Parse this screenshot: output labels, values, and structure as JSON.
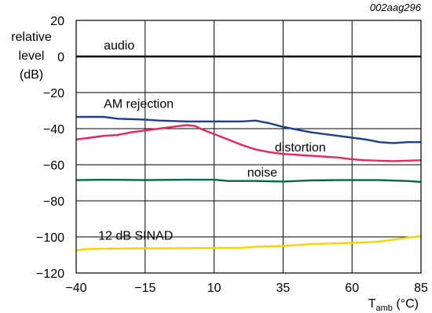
{
  "chart_data": {
    "type": "line",
    "reference": "002aag296",
    "ylabel_lines": [
      "relative",
      "level",
      "(dB)"
    ],
    "xlabel_main": "T",
    "xlabel_sub": "amb",
    "xlabel_unit": " (°C)",
    "xlim": [
      -40,
      85
    ],
    "ylim": [
      -120,
      20
    ],
    "xticks": [
      -40,
      -15,
      10,
      35,
      60,
      85
    ],
    "yticks": [
      20,
      0,
      -20,
      -40,
      -60,
      -80,
      -100,
      -120
    ],
    "xtick_labels": [
      "−40",
      "−15",
      "10",
      "35",
      "60",
      "85"
    ],
    "ytick_labels": [
      "20",
      "0",
      "−20",
      "−40",
      "−60",
      "−80",
      "−100",
      "−120"
    ],
    "grid": true,
    "series": [
      {
        "name": "audio",
        "color": "#000000",
        "label_at": [
          -30,
          4
        ],
        "points": [
          [
            -40,
            0
          ],
          [
            85,
            0
          ]
        ]
      },
      {
        "name": "AM rejection",
        "color": "#1c3f94",
        "label_at": [
          -30,
          -28.5
        ],
        "points": [
          [
            -40,
            -33.5
          ],
          [
            -30,
            -33.5
          ],
          [
            -25,
            -34.5
          ],
          [
            -15,
            -35
          ],
          [
            -10,
            -35.5
          ],
          [
            0,
            -36
          ],
          [
            10,
            -36
          ],
          [
            20,
            -36
          ],
          [
            25,
            -35.5
          ],
          [
            30,
            -37
          ],
          [
            35,
            -39
          ],
          [
            40,
            -40.5
          ],
          [
            45,
            -42
          ],
          [
            50,
            -43
          ],
          [
            55,
            -44
          ],
          [
            60,
            -45
          ],
          [
            65,
            -46
          ],
          [
            70,
            -47.5
          ],
          [
            75,
            -48
          ],
          [
            80,
            -47.5
          ],
          [
            85,
            -47.5
          ]
        ]
      },
      {
        "name": "distortion",
        "color": "#e8265e",
        "label_at": [
          32,
          -52.5
        ],
        "points": [
          [
            -40,
            -46
          ],
          [
            -35,
            -45
          ],
          [
            -30,
            -44
          ],
          [
            -25,
            -43.5
          ],
          [
            -20,
            -42
          ],
          [
            -15,
            -41
          ],
          [
            -10,
            -40
          ],
          [
            -5,
            -39
          ],
          [
            0,
            -38
          ],
          [
            3,
            -38.5
          ],
          [
            5,
            -40
          ],
          [
            10,
            -43
          ],
          [
            15,
            -46
          ],
          [
            20,
            -49
          ],
          [
            25,
            -51.5
          ],
          [
            30,
            -53
          ],
          [
            35,
            -54
          ],
          [
            45,
            -55
          ],
          [
            55,
            -56
          ],
          [
            60,
            -57
          ],
          [
            65,
            -57.5
          ],
          [
            75,
            -58
          ],
          [
            85,
            -57.5
          ]
        ]
      },
      {
        "name": "noise",
        "color": "#006b3f",
        "label_at": [
          22,
          -66.5
        ],
        "points": [
          [
            -40,
            -68.5
          ],
          [
            -30,
            -68.3
          ],
          [
            -15,
            -68.5
          ],
          [
            0,
            -68.3
          ],
          [
            10,
            -68.3
          ],
          [
            15,
            -69
          ],
          [
            25,
            -69
          ],
          [
            35,
            -69.3
          ],
          [
            45,
            -68.7
          ],
          [
            55,
            -68.5
          ],
          [
            70,
            -68.5
          ],
          [
            80,
            -69
          ],
          [
            85,
            -69.5
          ]
        ]
      },
      {
        "name": "12 dB SINAD",
        "color": "#fdd000",
        "label_at": [
          -32,
          -101.5
        ],
        "points": [
          [
            -40,
            -107.5
          ],
          [
            -37,
            -106.8
          ],
          [
            -30,
            -106.5
          ],
          [
            -15,
            -106.3
          ],
          [
            0,
            -106.2
          ],
          [
            10,
            -106.1
          ],
          [
            20,
            -106
          ],
          [
            25,
            -105.5
          ],
          [
            35,
            -105
          ],
          [
            45,
            -104
          ],
          [
            55,
            -103.5
          ],
          [
            65,
            -103
          ],
          [
            70,
            -102.5
          ],
          [
            75,
            -101.5
          ],
          [
            80,
            -100.5
          ],
          [
            85,
            -99.5
          ]
        ]
      }
    ]
  }
}
